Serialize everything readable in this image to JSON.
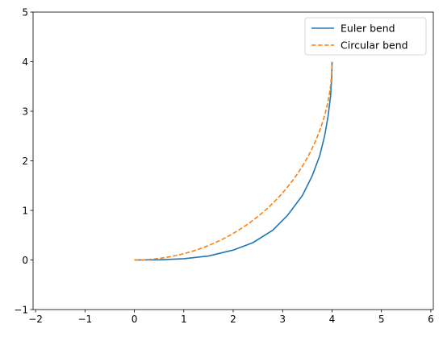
{
  "chart_data": {
    "type": "line",
    "title": "",
    "xlabel": "",
    "ylabel": "",
    "xlim": [
      -2.05,
      6.05
    ],
    "ylim": [
      -1,
      5
    ],
    "xticks": [
      -2,
      -1,
      0,
      1,
      2,
      3,
      4,
      5,
      6
    ],
    "xtick_labels": [
      "−2",
      "−1",
      "0",
      "1",
      "2",
      "3",
      "4",
      "5",
      "6"
    ],
    "yticks": [
      -1,
      0,
      1,
      2,
      3,
      4,
      5
    ],
    "ytick_labels": [
      "−1",
      "0",
      "1",
      "2",
      "3",
      "4",
      "5"
    ],
    "grid": false,
    "legend_position": "top-right",
    "series": [
      {
        "name": "Euler bend",
        "color": "#1f77b4",
        "style": "solid",
        "x": [
          0.0,
          0.5,
          1.0,
          1.5,
          2.0,
          2.4,
          2.8,
          3.1,
          3.4,
          3.6,
          3.75,
          3.85,
          3.92,
          3.97,
          3.995,
          4.0
        ],
        "y": [
          0.0,
          0.003,
          0.025,
          0.08,
          0.2,
          0.35,
          0.6,
          0.9,
          1.3,
          1.7,
          2.1,
          2.5,
          2.9,
          3.3,
          3.7,
          4.0
        ]
      },
      {
        "name": "Circular bend",
        "color": "#ff7f0e",
        "style": "dashed",
        "circle_center": [
          0,
          4
        ],
        "radius": 4
      }
    ]
  }
}
